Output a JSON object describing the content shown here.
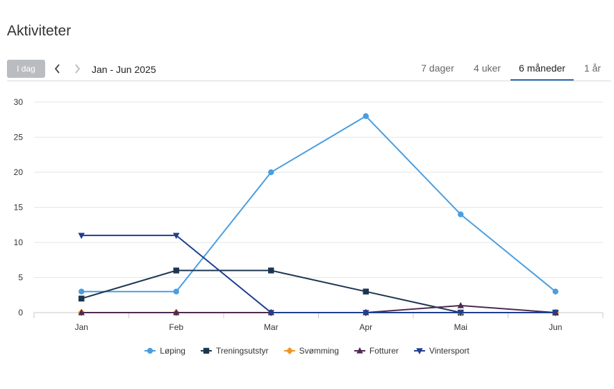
{
  "page": {
    "title": "Aktiviteter"
  },
  "toolbar": {
    "today_label": "I dag",
    "prev_icon": "chevron-left-icon",
    "next_icon": "chevron-right-icon",
    "range_label": "Jan - Jun 2025",
    "tabs": [
      {
        "label": "7 dager",
        "active": false
      },
      {
        "label": "4 uker",
        "active": false
      },
      {
        "label": "6 måneder",
        "active": true
      },
      {
        "label": "1 år",
        "active": false
      }
    ]
  },
  "colors": {
    "accent": "#2a6db5"
  },
  "chart_data": {
    "type": "line",
    "title": "",
    "xlabel": "",
    "ylabel": "",
    "categories": [
      "Jan",
      "Feb",
      "Mar",
      "Apr",
      "Mai",
      "Jun"
    ],
    "ylim": [
      0,
      30
    ],
    "yticks": [
      "0",
      "5",
      "10",
      "15",
      "20",
      "25",
      "30"
    ],
    "grid": true,
    "legend_position": "bottom",
    "series": [
      {
        "name": "Løping",
        "values": [
          3,
          3,
          20,
          28,
          14,
          3
        ],
        "color": "#4a9ee0",
        "marker": "circle"
      },
      {
        "name": "Treningsutstyr",
        "values": [
          2,
          6,
          6,
          3,
          0,
          0
        ],
        "color": "#1c3550",
        "marker": "square"
      },
      {
        "name": "Svømming",
        "values": [
          0,
          0,
          0,
          0,
          0,
          0
        ],
        "color": "#f0961e",
        "marker": "diamond"
      },
      {
        "name": "Fotturer",
        "values": [
          0,
          0,
          0,
          0,
          1,
          0
        ],
        "color": "#4e2a4e",
        "marker": "triangle-up"
      },
      {
        "name": "Vintersport",
        "values": [
          11,
          11,
          0,
          0,
          0,
          0
        ],
        "color": "#1f3f8f",
        "marker": "triangle-down"
      }
    ]
  }
}
